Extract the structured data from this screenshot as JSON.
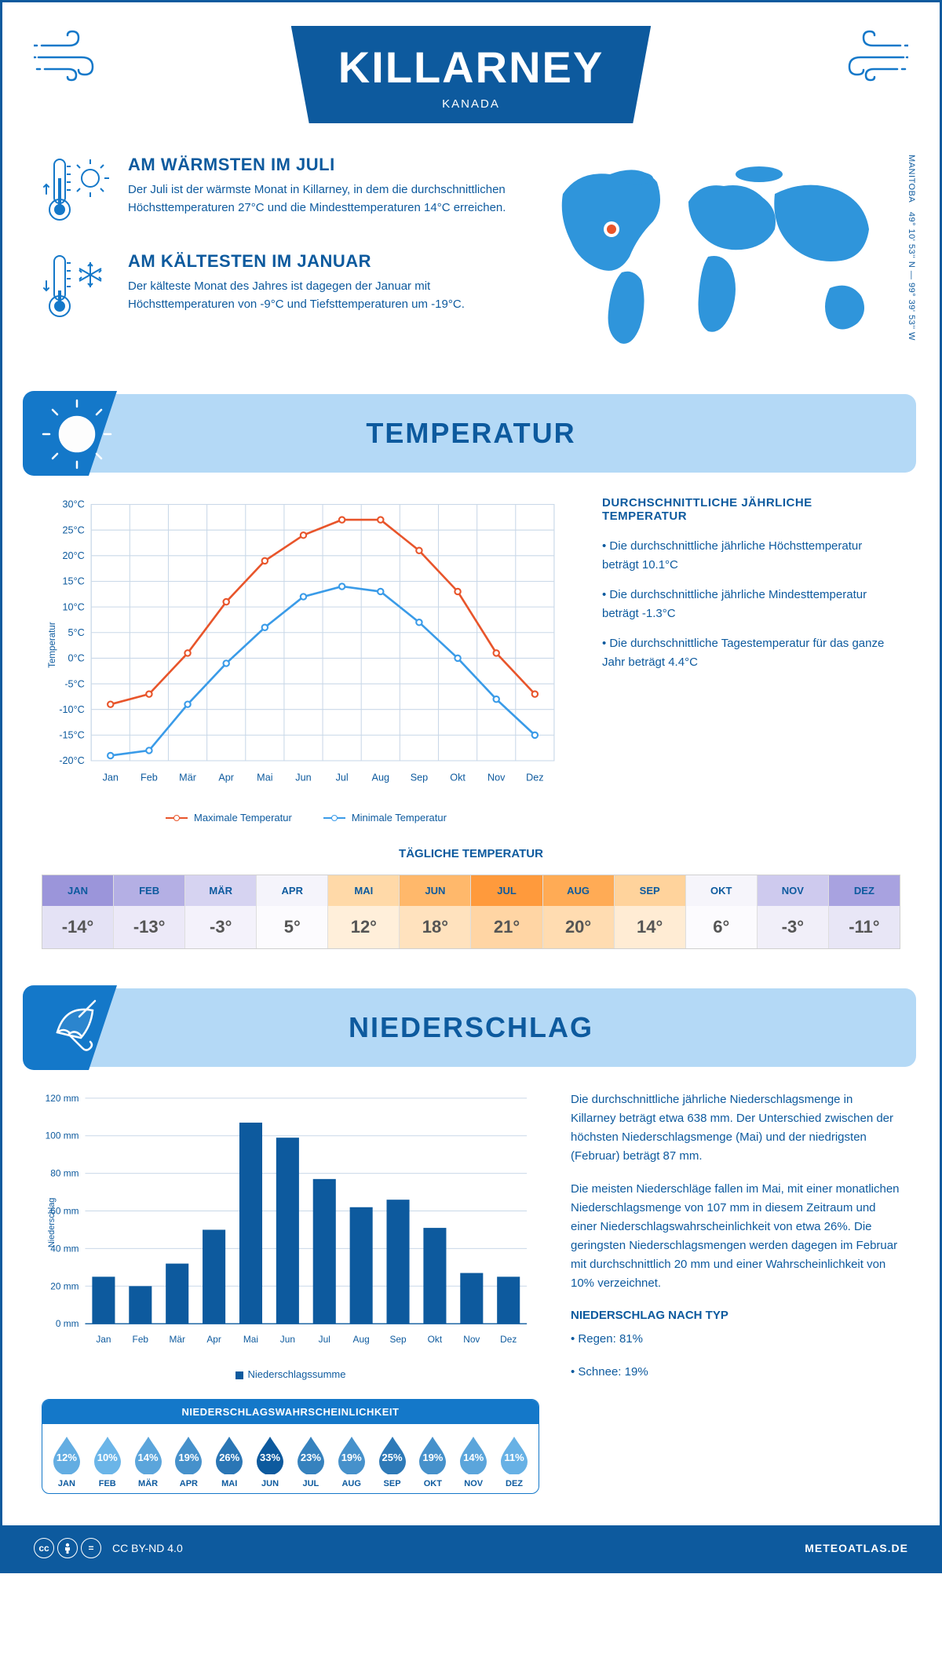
{
  "header": {
    "city": "KILLARNEY",
    "country": "KANADA"
  },
  "coords": {
    "region": "MANITOBA",
    "text": "49° 10' 53'' N — 99° 39' 53'' W"
  },
  "facts": {
    "warm": {
      "title": "AM WÄRMSTEN IM JULI",
      "text": "Der Juli ist der wärmste Monat in Killarney, in dem die durchschnittlichen Höchsttemperaturen 27°C und die Mindesttemperaturen 14°C erreichen."
    },
    "cold": {
      "title": "AM KÄLTESTEN IM JANUAR",
      "text": "Der kälteste Monat des Jahres ist dagegen der Januar mit Höchsttemperaturen von -9°C und Tiefsttemperaturen um -19°C."
    }
  },
  "sections": {
    "temperature": "TEMPERATUR",
    "precipitation": "NIEDERSCHLAG"
  },
  "months": [
    "Jan",
    "Feb",
    "Mär",
    "Apr",
    "Mai",
    "Jun",
    "Jul",
    "Aug",
    "Sep",
    "Okt",
    "Nov",
    "Dez"
  ],
  "months_upper": [
    "JAN",
    "FEB",
    "MÄR",
    "APR",
    "MAI",
    "JUN",
    "JUL",
    "AUG",
    "SEP",
    "OKT",
    "NOV",
    "DEZ"
  ],
  "temp_chart": {
    "type": "line",
    "ylabel": "Temperatur",
    "ylim": [
      -20,
      30
    ],
    "ytick_step": 5,
    "grid_color": "#c9d8e8",
    "series": {
      "max": {
        "label": "Maximale Temperatur",
        "color": "#e8552b",
        "values": [
          -9,
          -7,
          1,
          11,
          19,
          24,
          27,
          27,
          21,
          13,
          1,
          -7
        ]
      },
      "min": {
        "label": "Minimale Temperatur",
        "color": "#3a9be8",
        "values": [
          -19,
          -18,
          -9,
          -1,
          6,
          12,
          14,
          13,
          7,
          0,
          -8,
          -15
        ]
      }
    }
  },
  "temp_text": {
    "heading": "DURCHSCHNITTLICHE JÄHRLICHE TEMPERATUR",
    "p1": "• Die durchschnittliche jährliche Höchsttemperatur beträgt 10.1°C",
    "p2": "• Die durchschnittliche jährliche Mindesttemperatur beträgt -1.3°C",
    "p3": "• Die durchschnittliche Tagestemperatur für das ganze Jahr beträgt 4.4°C"
  },
  "daily_temp": {
    "heading": "TÄGLICHE TEMPERATUR",
    "values": [
      "-14°",
      "-13°",
      "-3°",
      "5°",
      "12°",
      "18°",
      "21°",
      "20°",
      "14°",
      "6°",
      "-3°",
      "-11°"
    ],
    "head_colors": [
      "#9b95da",
      "#b4afe4",
      "#d6d3f1",
      "#f5f4fb",
      "#ffd9a8",
      "#ffb86b",
      "#ff9a3c",
      "#ffab55",
      "#ffd39c",
      "#f6f5fb",
      "#cecaee",
      "#a8a2e0"
    ],
    "body_colors": [
      "#e4e2f5",
      "#ece9f8",
      "#f4f2fb",
      "#fcfbfe",
      "#ffefda",
      "#ffe2be",
      "#ffd5a4",
      "#ffdcb1",
      "#ffecd4",
      "#fcfbfe",
      "#f1eff9",
      "#e8e6f6"
    ]
  },
  "precip_chart": {
    "type": "bar",
    "ylabel": "Niederschlag",
    "ylim": [
      0,
      120
    ],
    "ytick_step": 20,
    "bar_color": "#0d5a9e",
    "grid_color": "#c9d8e8",
    "values": [
      25,
      20,
      32,
      50,
      107,
      99,
      77,
      62,
      66,
      51,
      27,
      25
    ],
    "legend": "Niederschlagssumme"
  },
  "prob": {
    "title": "NIEDERSCHLAGSWAHRSCHEINLICHKEIT",
    "values": [
      "12%",
      "10%",
      "14%",
      "19%",
      "26%",
      "33%",
      "23%",
      "19%",
      "25%",
      "19%",
      "14%",
      "11%"
    ],
    "nums": [
      12,
      10,
      14,
      19,
      26,
      33,
      23,
      19,
      25,
      19,
      14,
      11
    ],
    "color_low": "#6bb5e8",
    "color_high": "#0d5a9e"
  },
  "precip_text": {
    "p1": "Die durchschnittliche jährliche Niederschlagsmenge in Killarney beträgt etwa 638 mm. Der Unterschied zwischen der höchsten Niederschlagsmenge (Mai) und der niedrigsten (Februar) beträgt 87 mm.",
    "p2": "Die meisten Niederschläge fallen im Mai, mit einer monatlichen Niederschlagsmenge von 107 mm in diesem Zeitraum und einer Niederschlagswahrscheinlichkeit von etwa 26%. Die geringsten Niederschlagsmengen werden dagegen im Februar mit durchschnittlich 20 mm und einer Wahrscheinlichkeit von 10% verzeichnet.",
    "type_heading": "NIEDERSCHLAG NACH TYP",
    "type1": "• Regen: 81%",
    "type2": "• Schnee: 19%"
  },
  "footer": {
    "license": "CC BY-ND 4.0",
    "site": "METEOATLAS.DE"
  }
}
